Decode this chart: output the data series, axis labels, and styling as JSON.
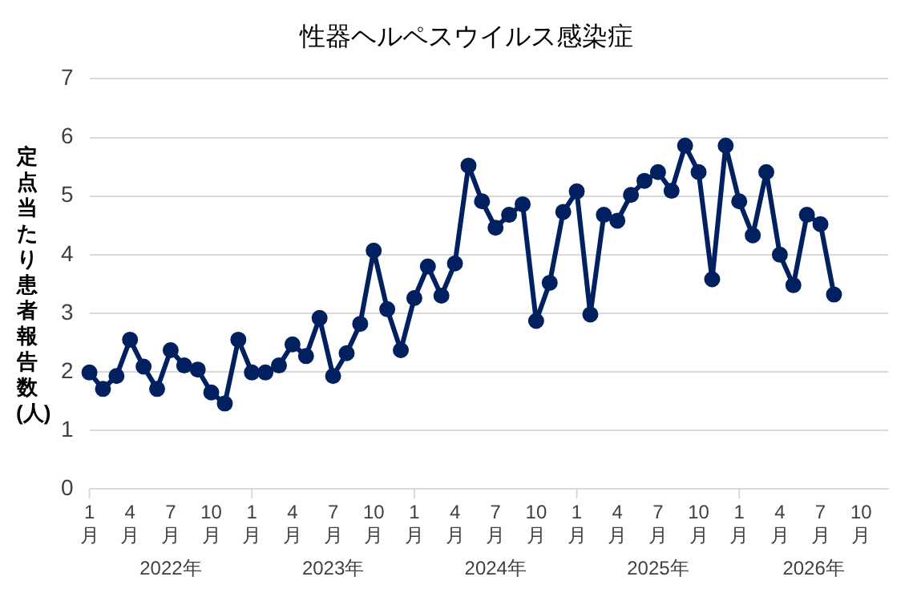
{
  "chart_data": {
    "type": "line",
    "title": "性器ヘルペスウイルス感染症",
    "ylabel": "定点当たり患者報告数(人)",
    "categories": [
      "1月",
      null,
      null,
      "4月",
      null,
      null,
      "7月",
      null,
      null,
      "10月",
      null,
      null,
      "1月",
      null,
      null,
      "4月",
      null,
      null,
      "7月",
      null,
      null,
      "10月",
      null,
      null,
      "1月",
      null,
      null,
      "4月",
      null,
      null,
      "7月",
      null,
      null,
      "10月",
      null,
      null,
      "1月",
      null,
      null,
      "4月",
      null,
      null,
      "7月",
      null,
      null,
      "10月",
      null,
      null,
      "1月",
      null,
      null,
      "4月",
      null,
      null,
      "7月",
      null,
      null,
      "10月",
      null,
      null
    ],
    "annotations": [
      "2022年",
      "2023年",
      "2024年",
      "2025年",
      "2026年"
    ],
    "series": [
      {
        "color": "#002060",
        "values": [
          1.99,
          1.71,
          1.93,
          2.55,
          2.09,
          1.71,
          2.37,
          2.11,
          2.04,
          1.65,
          1.46,
          2.55,
          1.99,
          1.99,
          2.11,
          2.47,
          2.27,
          2.92,
          1.93,
          2.32,
          2.82,
          4.07,
          3.07,
          2.37,
          3.26,
          3.8,
          3.3,
          3.85,
          5.52,
          4.91,
          4.46,
          4.68,
          4.86,
          2.87,
          3.52,
          4.73,
          5.08,
          2.98,
          4.68,
          4.58,
          5.02,
          5.26,
          5.41,
          5.09,
          5.86,
          5.41,
          3.58,
          5.86,
          4.91,
          4.33,
          5.41,
          4.0,
          3.48,
          4.68,
          4.52,
          3.32,
          null,
          null,
          null,
          null
        ]
      }
    ],
    "ylim": [
      0,
      7
    ],
    "yticks": [
      0,
      1,
      2,
      3,
      4,
      5,
      6,
      7
    ],
    "grid": "y",
    "legend": false,
    "marker": "circle",
    "line_style": "solid"
  }
}
